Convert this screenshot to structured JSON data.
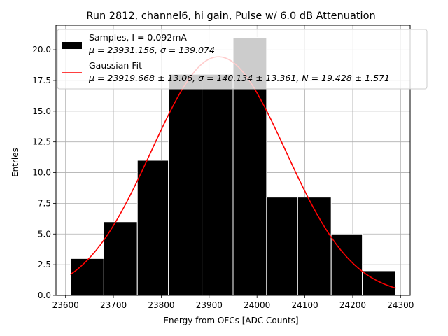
{
  "chart_data": {
    "type": "bar",
    "title": "Run 2812, channel6, hi gain, Pulse w/ 6.0 dB Attenuation",
    "xlabel": "Energy from OFCs [ADC Counts]",
    "ylabel": "Entries",
    "xlim": [
      23580,
      24320
    ],
    "ylim": [
      0,
      22
    ],
    "x_ticks": [
      23600,
      23700,
      23800,
      23900,
      24000,
      24100,
      24200,
      24300
    ],
    "x_tick_labels": [
      "23600",
      "23700",
      "23800",
      "23900",
      "24000",
      "24100",
      "24200",
      "24300"
    ],
    "y_ticks": [
      0,
      2.5,
      5,
      7.5,
      10,
      12.5,
      15,
      17.5,
      20
    ],
    "y_tick_labels": [
      "0.0",
      "2.5",
      "5.0",
      "7.5",
      "10.0",
      "12.5",
      "15.0",
      "17.5",
      "20.0"
    ],
    "grid": true,
    "legend_position": "top-right",
    "bins": [
      {
        "left": 23610,
        "right": 23680,
        "count": 3
      },
      {
        "left": 23680,
        "right": 23750,
        "count": 6
      },
      {
        "left": 23750,
        "right": 23815,
        "count": 11
      },
      {
        "left": 23815,
        "right": 23885,
        "count": 18
      },
      {
        "left": 23885,
        "right": 23950,
        "count": 18
      },
      {
        "left": 23950,
        "right": 24020,
        "count": 21
      },
      {
        "left": 24020,
        "right": 24085,
        "count": 8
      },
      {
        "left": 24085,
        "right": 24155,
        "count": 8
      },
      {
        "left": 24155,
        "right": 24220,
        "count": 5
      },
      {
        "left": 24220,
        "right": 24290,
        "count": 2
      }
    ],
    "fit": {
      "mu": 23919.668,
      "sigma": 140.134,
      "N": 19.428,
      "x_range": [
        23610,
        24290
      ]
    },
    "series": [
      {
        "name": "Samples, I = 0.092mA",
        "detail": "μ = 23931.156, σ = 139.074",
        "color": "#000000",
        "kind": "bar"
      },
      {
        "name": "Gaussian Fit",
        "detail": "μ = 23919.668 ± 13.06, σ = 140.134 ± 13.361, N = 19.428 ± 1.571",
        "color": "#ff0000",
        "kind": "line"
      }
    ]
  }
}
